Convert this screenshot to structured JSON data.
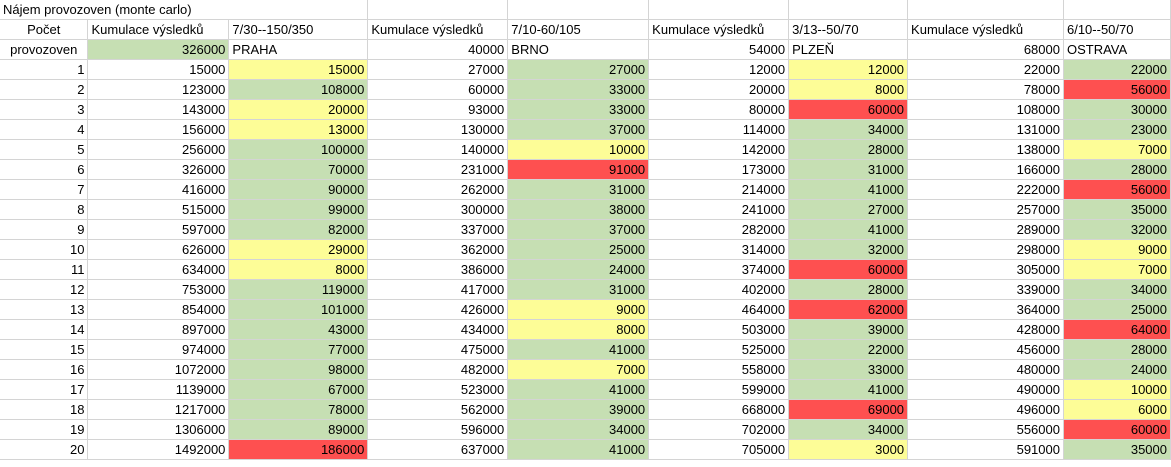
{
  "title": "Nájem provozoven (monte carlo)",
  "row_header": [
    "Počet",
    "provozoven"
  ],
  "total_label": "Kumulace výsledků",
  "cities": [
    {
      "name": "PRAHA",
      "param": "7/30--150/350",
      "total": "326000"
    },
    {
      "name": "BRNO",
      "param": "7/10-60/105",
      "total": "40000"
    },
    {
      "name": "PLZEŇ",
      "param": "3/13--50/70",
      "total": "54000"
    },
    {
      "name": "OSTRAVA",
      "param": "6/10--50/70",
      "total": "68000"
    }
  ],
  "colors": {
    "green": "#c6dfb3",
    "yellow": "#fdfd97",
    "red": "#fe5050"
  },
  "rows": [
    {
      "n": "1",
      "c": [
        [
          "15000",
          "15000",
          "y"
        ],
        [
          "27000",
          "27000",
          "g"
        ],
        [
          "12000",
          "12000",
          "y"
        ],
        [
          "22000",
          "22000",
          "g"
        ]
      ]
    },
    {
      "n": "2",
      "c": [
        [
          "123000",
          "108000",
          "g"
        ],
        [
          "60000",
          "33000",
          "g"
        ],
        [
          "20000",
          "8000",
          "y"
        ],
        [
          "78000",
          "56000",
          "r"
        ]
      ]
    },
    {
      "n": "3",
      "c": [
        [
          "143000",
          "20000",
          "y"
        ],
        [
          "93000",
          "33000",
          "g"
        ],
        [
          "80000",
          "60000",
          "r"
        ],
        [
          "108000",
          "30000",
          "g"
        ]
      ]
    },
    {
      "n": "4",
      "c": [
        [
          "156000",
          "13000",
          "y"
        ],
        [
          "130000",
          "37000",
          "g"
        ],
        [
          "114000",
          "34000",
          "g"
        ],
        [
          "131000",
          "23000",
          "g"
        ]
      ]
    },
    {
      "n": "5",
      "c": [
        [
          "256000",
          "100000",
          "g"
        ],
        [
          "140000",
          "10000",
          "y"
        ],
        [
          "142000",
          "28000",
          "g"
        ],
        [
          "138000",
          "7000",
          "y"
        ]
      ]
    },
    {
      "n": "6",
      "c": [
        [
          "326000",
          "70000",
          "g"
        ],
        [
          "231000",
          "91000",
          "r"
        ],
        [
          "173000",
          "31000",
          "g"
        ],
        [
          "166000",
          "28000",
          "g"
        ]
      ]
    },
    {
      "n": "7",
      "c": [
        [
          "416000",
          "90000",
          "g"
        ],
        [
          "262000",
          "31000",
          "g"
        ],
        [
          "214000",
          "41000",
          "g"
        ],
        [
          "222000",
          "56000",
          "r"
        ]
      ]
    },
    {
      "n": "8",
      "c": [
        [
          "515000",
          "99000",
          "g"
        ],
        [
          "300000",
          "38000",
          "g"
        ],
        [
          "241000",
          "27000",
          "g"
        ],
        [
          "257000",
          "35000",
          "g"
        ]
      ]
    },
    {
      "n": "9",
      "c": [
        [
          "597000",
          "82000",
          "g"
        ],
        [
          "337000",
          "37000",
          "g"
        ],
        [
          "282000",
          "41000",
          "g"
        ],
        [
          "289000",
          "32000",
          "g"
        ]
      ]
    },
    {
      "n": "10",
      "c": [
        [
          "626000",
          "29000",
          "y"
        ],
        [
          "362000",
          "25000",
          "g"
        ],
        [
          "314000",
          "32000",
          "g"
        ],
        [
          "298000",
          "9000",
          "y"
        ]
      ]
    },
    {
      "n": "11",
      "c": [
        [
          "634000",
          "8000",
          "y"
        ],
        [
          "386000",
          "24000",
          "g"
        ],
        [
          "374000",
          "60000",
          "r"
        ],
        [
          "305000",
          "7000",
          "y"
        ]
      ]
    },
    {
      "n": "12",
      "c": [
        [
          "753000",
          "119000",
          "g"
        ],
        [
          "417000",
          "31000",
          "g"
        ],
        [
          "402000",
          "28000",
          "g"
        ],
        [
          "339000",
          "34000",
          "g"
        ]
      ]
    },
    {
      "n": "13",
      "c": [
        [
          "854000",
          "101000",
          "g"
        ],
        [
          "426000",
          "9000",
          "y"
        ],
        [
          "464000",
          "62000",
          "r"
        ],
        [
          "364000",
          "25000",
          "g"
        ]
      ]
    },
    {
      "n": "14",
      "c": [
        [
          "897000",
          "43000",
          "g"
        ],
        [
          "434000",
          "8000",
          "y"
        ],
        [
          "503000",
          "39000",
          "g"
        ],
        [
          "428000",
          "64000",
          "r"
        ]
      ]
    },
    {
      "n": "15",
      "c": [
        [
          "974000",
          "77000",
          "g"
        ],
        [
          "475000",
          "41000",
          "g"
        ],
        [
          "525000",
          "22000",
          "g"
        ],
        [
          "456000",
          "28000",
          "g"
        ]
      ]
    },
    {
      "n": "16",
      "c": [
        [
          "1072000",
          "98000",
          "g"
        ],
        [
          "482000",
          "7000",
          "y"
        ],
        [
          "558000",
          "33000",
          "g"
        ],
        [
          "480000",
          "24000",
          "g"
        ]
      ]
    },
    {
      "n": "17",
      "c": [
        [
          "1139000",
          "67000",
          "g"
        ],
        [
          "523000",
          "41000",
          "g"
        ],
        [
          "599000",
          "41000",
          "g"
        ],
        [
          "490000",
          "10000",
          "y"
        ]
      ]
    },
    {
      "n": "18",
      "c": [
        [
          "1217000",
          "78000",
          "g"
        ],
        [
          "562000",
          "39000",
          "g"
        ],
        [
          "668000",
          "69000",
          "r"
        ],
        [
          "496000",
          "6000",
          "y"
        ]
      ]
    },
    {
      "n": "19",
      "c": [
        [
          "1306000",
          "89000",
          "g"
        ],
        [
          "596000",
          "34000",
          "g"
        ],
        [
          "702000",
          "34000",
          "g"
        ],
        [
          "556000",
          "60000",
          "r"
        ]
      ]
    },
    {
      "n": "20",
      "c": [
        [
          "1492000",
          "186000",
          "r"
        ],
        [
          "637000",
          "41000",
          "g"
        ],
        [
          "705000",
          "3000",
          "y"
        ],
        [
          "591000",
          "35000",
          "g"
        ]
      ]
    }
  ]
}
